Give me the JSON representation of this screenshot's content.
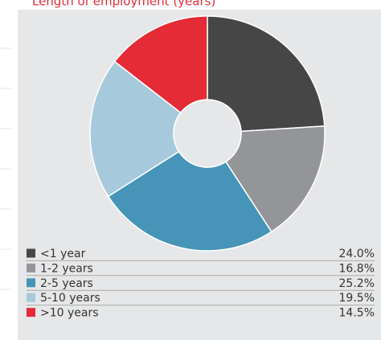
{
  "chart_data": {
    "type": "pie",
    "title": "Length of employment (years)",
    "categories": [
      "<1 year",
      "1-2 years",
      "2-5 years",
      "5-10 years",
      ">10 years"
    ],
    "values": [
      24.0,
      16.8,
      25.2,
      19.5,
      14.5
    ],
    "value_labels": [
      "24.0%",
      "16.8%",
      "25.2%",
      "19.5%",
      "14.5%"
    ],
    "colors": [
      "#474646",
      "#939598",
      "#4695b8",
      "#a7c9dc",
      "#e52b35"
    ]
  }
}
